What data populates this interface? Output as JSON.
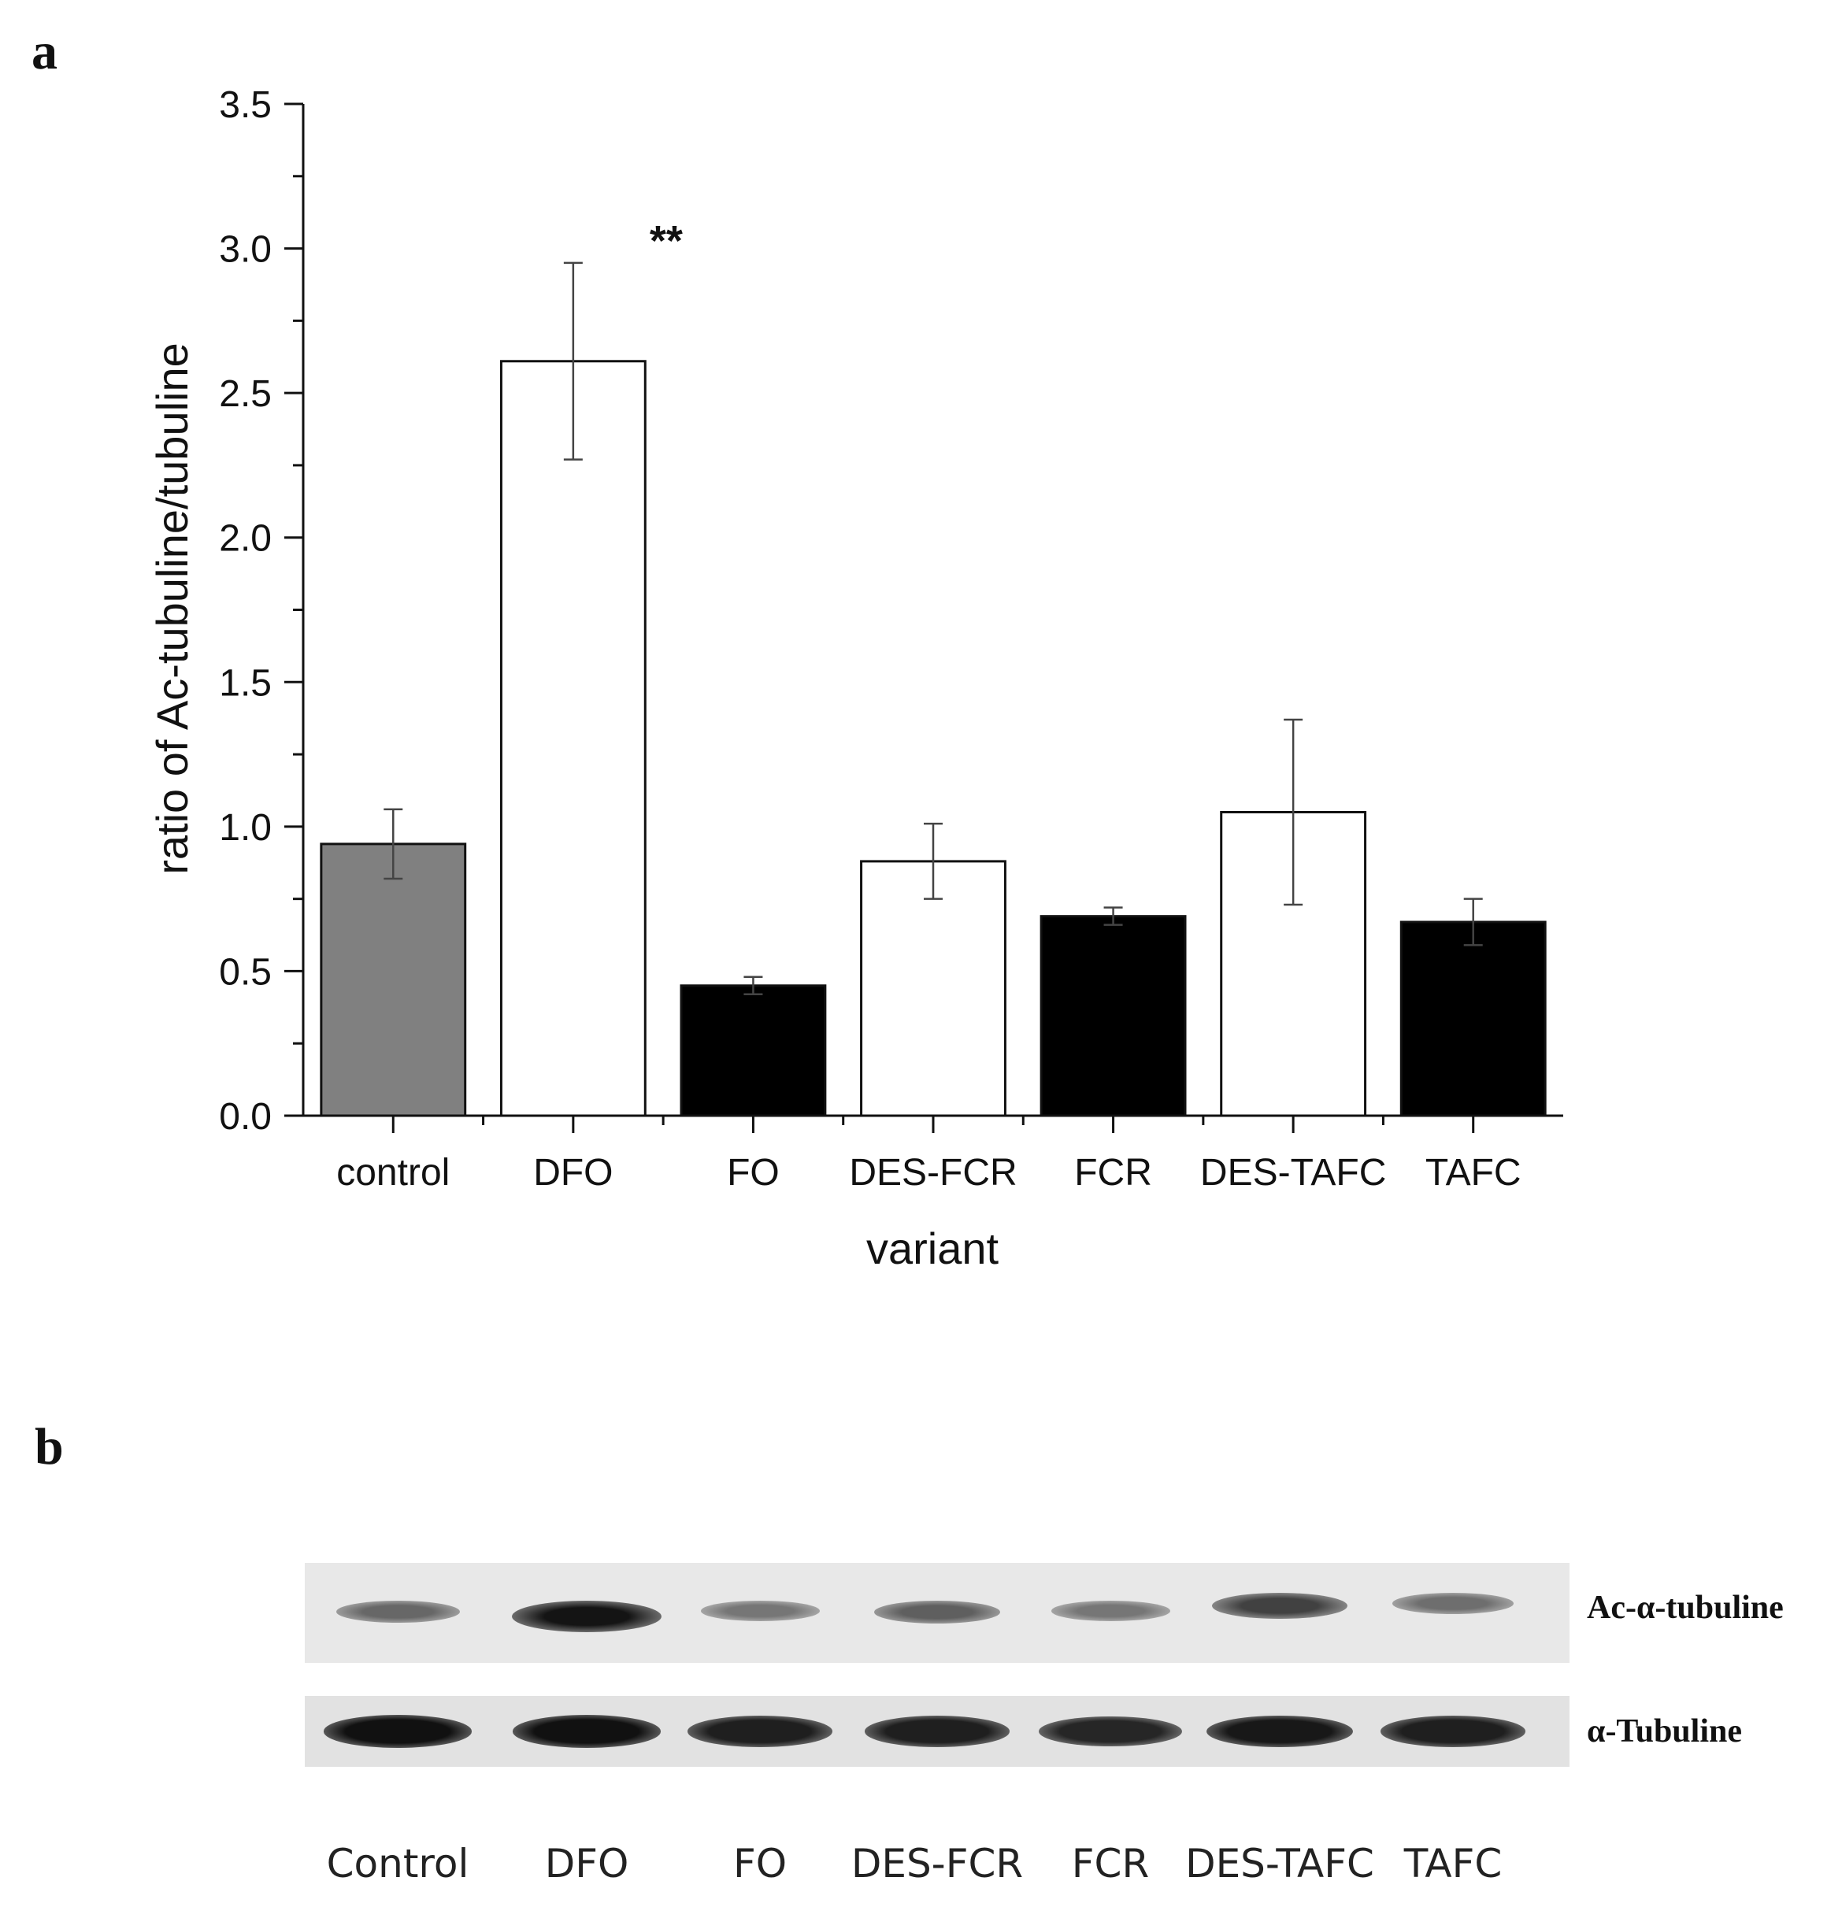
{
  "panel_a": {
    "label": "a"
  },
  "panel_b": {
    "label": "b",
    "row_labels": [
      "Ac-α-tubuline",
      "α-Tubuline"
    ],
    "lane_labels": [
      "Control",
      "DFO",
      "FO",
      "DES-FCR",
      "FCR",
      "DES-TAFC",
      "TAFC"
    ],
    "ac_band_intensity": [
      0.45,
      1.0,
      0.35,
      0.5,
      0.35,
      0.7,
      0.4
    ],
    "tubuline_band_intensity": [
      0.95,
      0.95,
      0.85,
      0.85,
      0.8,
      0.9,
      0.85
    ]
  },
  "chart_data": {
    "type": "bar",
    "categories": [
      "control",
      "DFO",
      "FO",
      "DES-FCR",
      "FCR",
      "DES-TAFC",
      "TAFC"
    ],
    "values": [
      0.94,
      2.61,
      0.45,
      0.88,
      0.69,
      1.05,
      0.67
    ],
    "errors": [
      0.12,
      0.34,
      0.03,
      0.13,
      0.03,
      0.32,
      0.08
    ],
    "bar_colors": [
      "#808080",
      "#ffffff",
      "#000000",
      "#ffffff",
      "#000000",
      "#ffffff",
      "#000000"
    ],
    "xlabel": "variant",
    "ylabel": "ratio of Ac-tubuline/tubuline",
    "ylim": [
      0,
      3.5
    ],
    "yticks": [
      "0.0",
      "0.5",
      "1.0",
      "1.5",
      "2.0",
      "2.5",
      "3.0",
      "3.5"
    ],
    "annotation": "**",
    "grid": false
  }
}
